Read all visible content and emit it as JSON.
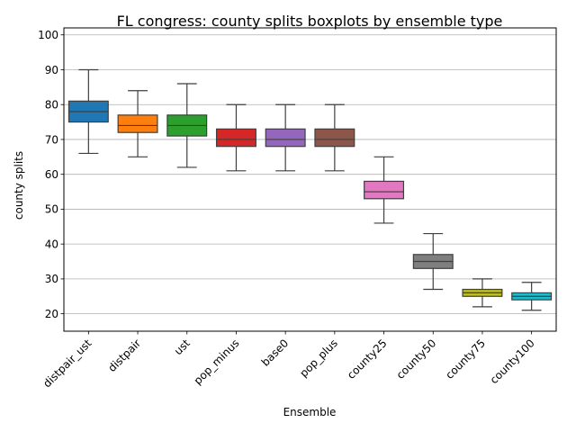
{
  "chart_data": {
    "type": "boxplot",
    "title": "FL congress: county splits boxplots by ensemble type",
    "xlabel": "Ensemble",
    "ylabel": "county splits",
    "ylim": [
      15,
      102
    ],
    "yticks": [
      20,
      30,
      40,
      50,
      60,
      70,
      80,
      90,
      100
    ],
    "grid": "horizontal",
    "categories": [
      "distpair_ust",
      "distpair",
      "ust",
      "pop_minus",
      "base0",
      "pop_plus",
      "county25",
      "county50",
      "county75",
      "county100"
    ],
    "boxes": [
      {
        "category": "distpair_ust",
        "whisker_low": 66,
        "q1": 75,
        "median": 78,
        "q3": 81,
        "whisker_high": 90,
        "color": "#1f77b4"
      },
      {
        "category": "distpair",
        "whisker_low": 65,
        "q1": 72,
        "median": 74,
        "q3": 77,
        "whisker_high": 84,
        "color": "#ff7f0e"
      },
      {
        "category": "ust",
        "whisker_low": 62,
        "q1": 71,
        "median": 74,
        "q3": 77,
        "whisker_high": 86,
        "color": "#2ca02c"
      },
      {
        "category": "pop_minus",
        "whisker_low": 61,
        "q1": 68,
        "median": 70,
        "q3": 73,
        "whisker_high": 80,
        "color": "#d62728"
      },
      {
        "category": "base0",
        "whisker_low": 61,
        "q1": 68,
        "median": 70,
        "q3": 73,
        "whisker_high": 80,
        "color": "#9467bd"
      },
      {
        "category": "pop_plus",
        "whisker_low": 61,
        "q1": 68,
        "median": 70,
        "q3": 73,
        "whisker_high": 80,
        "color": "#8c564b"
      },
      {
        "category": "county25",
        "whisker_low": 46,
        "q1": 53,
        "median": 55,
        "q3": 58,
        "whisker_high": 65,
        "color": "#e377c2"
      },
      {
        "category": "county50",
        "whisker_low": 27,
        "q1": 33,
        "median": 35,
        "q3": 37,
        "whisker_high": 43,
        "color": "#7f7f7f"
      },
      {
        "category": "county75",
        "whisker_low": 22,
        "q1": 25,
        "median": 26,
        "q3": 27,
        "whisker_high": 30,
        "color": "#bcbd22"
      },
      {
        "category": "county100",
        "whisker_low": 21,
        "q1": 24,
        "median": 25,
        "q3": 26,
        "whisker_high": 29,
        "color": "#17becf"
      }
    ]
  }
}
